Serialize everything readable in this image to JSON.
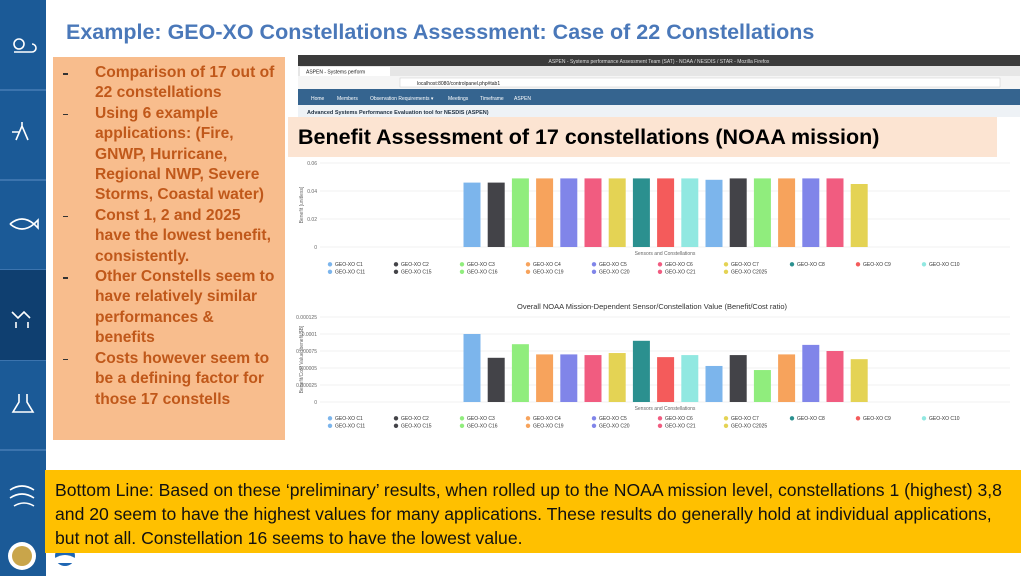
{
  "title": "Example: GEO-XO Constellations Assessment: Case of 22 Constellations",
  "bullets": [
    "Comparison of 17 out of 22 constellations",
    "Using 6 example applications: (Fire, GNWP, Hurricane, Regional NWP, Severe Storms, Coastal water)",
    "Const 1, 2 and 2025 have the lowest benefit, consistently.",
    "Other Constells seem to have relatively similar performances & benefits",
    "Costs however seem to be a defining factor for those 17 constells"
  ],
  "screenshot": {
    "window_title": "ASPEN - Systems performance Assessment Team (SAT) - NOAA / NESDIS / STAR - Mozilla Firefox",
    "tab": "ASPEN - Systems perform",
    "url": "localhost:8080/controlpanel.php#tab1",
    "nav": [
      "Home",
      "Members",
      "Observation Requirements ▾",
      "Meetings",
      "Timeframe",
      "ASPEN"
    ],
    "app_title": "Advanced Systems Performance Evaluation tool for NESDIS (ASPEN)"
  },
  "overlay_label": "Benefit Assessment of 17 constellations (NOAA mission)",
  "chart_data": [
    {
      "type": "bar",
      "y_label": "Benefit [unitless]",
      "x_label": "Sensors and Constellations",
      "categories": [
        "GEO-XO C1",
        "GEO-XO C2",
        "GEO-XO C3",
        "GEO-XO C4",
        "GEO-XO C5",
        "GEO-XO C6",
        "GEO-XO C7",
        "GEO-XO C8",
        "GEO-XO C9",
        "GEO-XO C10",
        "GEO-XO C11",
        "GEO-XO C15",
        "GEO-XO C16",
        "GEO-XO C19",
        "GEO-XO C20",
        "GEO-XO C21",
        "GEO-XO C2025"
      ],
      "colors": [
        "#7cb5ec",
        "#434348",
        "#90ed7d",
        "#f7a35c",
        "#8085e9",
        "#f15c80",
        "#e4d354",
        "#2b908f",
        "#f45b5b",
        "#91e8e1",
        "#7cb5ec",
        "#434348",
        "#90ed7d",
        "#f7a35c",
        "#8085e9",
        "#f15c80",
        "#e4d354"
      ],
      "values": [
        0.046,
        0.046,
        0.049,
        0.049,
        0.049,
        0.049,
        0.049,
        0.049,
        0.049,
        0.049,
        0.048,
        0.049,
        0.049,
        0.049,
        0.049,
        0.049,
        0.045
      ],
      "ylim": [
        0,
        0.06
      ],
      "yticks": [
        0,
        0.02,
        0.04,
        0.06
      ],
      "grid": true
    },
    {
      "type": "bar",
      "title": "Overall NOAA Mission-Dependent Sensor/Constellation Value (Benefit/Cost ratio)",
      "y_label": "Benefit/Cost Value [benefit/$B]",
      "x_label": "Sensors and Constellations",
      "categories": [
        "GEO-XO C1",
        "GEO-XO C2",
        "GEO-XO C3",
        "GEO-XO C4",
        "GEO-XO C5",
        "GEO-XO C6",
        "GEO-XO C7",
        "GEO-XO C8",
        "GEO-XO C9",
        "GEO-XO C10",
        "GEO-XO C11",
        "GEO-XO C15",
        "GEO-XO C16",
        "GEO-XO C19",
        "GEO-XO C20",
        "GEO-XO C21",
        "GEO-XO C2025"
      ],
      "colors": [
        "#7cb5ec",
        "#434348",
        "#90ed7d",
        "#f7a35c",
        "#8085e9",
        "#f15c80",
        "#e4d354",
        "#2b908f",
        "#f45b5b",
        "#91e8e1",
        "#7cb5ec",
        "#434348",
        "#90ed7d",
        "#f7a35c",
        "#8085e9",
        "#f15c80",
        "#e4d354"
      ],
      "values": [
        0.0001,
        6.5e-05,
        8.5e-05,
        7e-05,
        7e-05,
        6.9e-05,
        7.2e-05,
        9e-05,
        6.6e-05,
        6.9e-05,
        5.3e-05,
        6.9e-05,
        4.7e-05,
        7e-05,
        8.4e-05,
        7.5e-05,
        6.3e-05
      ],
      "ylim": [
        0,
        0.000125
      ],
      "yticks": [
        0,
        2.5e-05,
        5e-05,
        7.5e-05,
        0.0001,
        0.000125
      ],
      "grid": true
    }
  ],
  "bottom_line": "Bottom Line: Based on these ‘preliminary’ results, when rolled up to the NOAA mission level, constellations 1 (highest) 3,8 and 20 seem to have the highest values for many applications. These results do generally hold at individual applications, but not all. Constellation 16 seems to have the lowest value."
}
